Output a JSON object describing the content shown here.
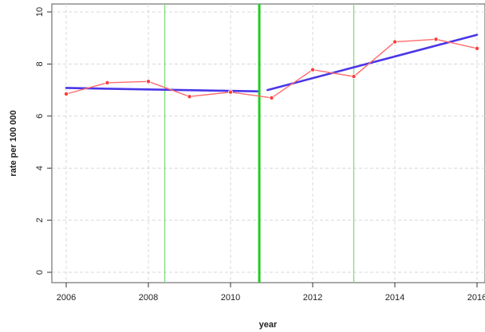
{
  "chart_data": {
    "type": "line",
    "title": "",
    "xlabel": "year",
    "ylabel": "rate per 100 000",
    "xlim": [
      2006,
      2016
    ],
    "ylim": [
      0,
      10
    ],
    "x_ticks": [
      2006,
      2008,
      2010,
      2012,
      2014,
      2016
    ],
    "y_ticks": [
      0,
      2,
      4,
      6,
      8,
      10
    ],
    "grid": true,
    "legend": "none",
    "series": [
      {
        "kind": "observed",
        "color": "#ff6b6b",
        "points": [
          {
            "x": 2006,
            "y": 6.85
          },
          {
            "x": 2007,
            "y": 7.28
          },
          {
            "x": 2008,
            "y": 7.33
          },
          {
            "x": 2009,
            "y": 6.75
          },
          {
            "x": 2010,
            "y": 6.92
          },
          {
            "x": 2011,
            "y": 6.7
          },
          {
            "x": 2012,
            "y": 7.78
          },
          {
            "x": 2013,
            "y": 7.52
          },
          {
            "x": 2014,
            "y": 8.85
          },
          {
            "x": 2015,
            "y": 8.95
          },
          {
            "x": 2016,
            "y": 8.6
          }
        ]
      },
      {
        "kind": "trend",
        "color": "#4a36e8",
        "segments": [
          {
            "x0": 2006,
            "y0": 7.08,
            "x1": 2010.65,
            "y1": 6.95
          },
          {
            "x0": 2010.9,
            "y0": 7.0,
            "x1": 2016,
            "y1": 9.12
          }
        ]
      }
    ],
    "vertical_lines": [
      {
        "x": 2008.4,
        "color": "#7ddc7d",
        "emphasis": "thin"
      },
      {
        "x": 2010.7,
        "color": "#22cc22",
        "emphasis": "thick"
      },
      {
        "x": 2013.0,
        "color": "#7ddc7d",
        "emphasis": "thin"
      }
    ]
  }
}
